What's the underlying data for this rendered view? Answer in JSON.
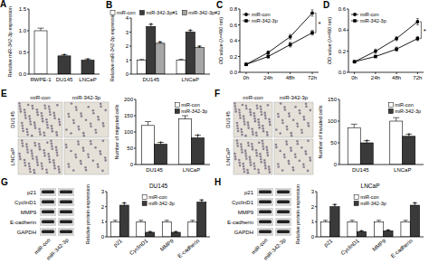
{
  "chart_data": [
    {
      "type": "bar",
      "panel": "A",
      "ylabel": "Relative miR-342-3p expression",
      "categories": [
        "RWPE-1",
        "DU145",
        "LNCaP"
      ],
      "values": [
        1.0,
        0.42,
        0.32
      ],
      "errors": [
        0.06,
        0.03,
        0.03
      ],
      "significance": [
        null,
        "*",
        "*"
      ],
      "colors": [
        "#ffffff",
        "#3a3a3a",
        "#3a3a3a"
      ],
      "ylim": [
        0,
        1.5
      ],
      "yticks": [
        {
          "value": 0,
          "label": "0.0"
        },
        0.5,
        {
          "value": 1,
          "label": "1.0"
        },
        1.5
      ]
    },
    {
      "type": "bar",
      "panel": "B",
      "ylabel": "Relative miR-342-3p expression",
      "categories": [
        "DU145",
        "LNCaP"
      ],
      "series": [
        {
          "name": "miR-con",
          "color": "#ffffff",
          "values": [
            1.0,
            1.0
          ],
          "errors": [
            0.05,
            0.06
          ]
        },
        {
          "name": "miR-342-3p#1",
          "color": "#3a3a3a",
          "values": [
            3.4,
            3.0
          ],
          "errors": [
            0.15,
            0.12
          ],
          "significance": [
            "*",
            "*"
          ]
        },
        {
          "name": "miR-342-3p#2",
          "color": "#a6a6a6",
          "values": [
            2.2,
            1.9
          ],
          "errors": [
            0.1,
            0.1
          ],
          "significance": [
            "*",
            "*"
          ]
        }
      ],
      "ylim": [
        0,
        4
      ],
      "yticks": [
        0,
        1,
        2,
        3,
        4
      ],
      "legend": "top"
    },
    {
      "type": "line",
      "panel": "C",
      "ylabel": "OD value (λ=490 nm)",
      "categories": [
        "0h",
        "24h",
        "48h",
        "72h"
      ],
      "series": [
        {
          "name": "miR-con",
          "color": "#000000",
          "marker": "circle",
          "values": [
            0.1,
            0.25,
            0.45,
            0.75
          ],
          "errors": [
            0.01,
            0.02,
            0.03,
            0.04
          ]
        },
        {
          "name": "miR-342-3p",
          "color": "#000000",
          "marker": "square",
          "values": [
            0.1,
            0.2,
            0.35,
            0.5
          ],
          "errors": [
            0.01,
            0.02,
            0.03,
            0.03
          ]
        }
      ],
      "ylim": [
        0,
        0.8
      ],
      "yticks": [
        {
          "value": 0,
          "label": "0.0"
        },
        0.2,
        0.4,
        0.6,
        0.8
      ],
      "legend": "upper left",
      "annotations": [
        "*"
      ]
    },
    {
      "type": "line",
      "panel": "D",
      "ylabel": "OD value (λ=490 nm)",
      "categories": [
        "0h",
        "24h",
        "48h",
        "72h"
      ],
      "series": [
        {
          "name": "miR-con",
          "color": "#000000",
          "marker": "circle",
          "values": [
            0.1,
            0.2,
            0.32,
            0.48
          ],
          "errors": [
            0.01,
            0.02,
            0.02,
            0.03
          ]
        },
        {
          "name": "miR-342-3p",
          "color": "#000000",
          "marker": "square",
          "values": [
            0.1,
            0.15,
            0.22,
            0.32
          ],
          "errors": [
            0.01,
            0.01,
            0.02,
            0.02
          ]
        }
      ],
      "ylim": [
        0,
        0.6
      ],
      "yticks": [
        {
          "value": 0,
          "label": "0.0"
        },
        0.2,
        0.4,
        0.6
      ],
      "legend": "upper left",
      "annotations": [
        "*"
      ]
    },
    {
      "type": "bar",
      "ylabel": "Number of migrated cells",
      "categories": [
        "DU145",
        "LNCaP"
      ],
      "series": [
        {
          "name": "miR-con",
          "color": "#ffffff",
          "values": [
            120,
            140
          ],
          "errors": [
            12,
            10
          ]
        },
        {
          "name": "miR-342-3p",
          "color": "#3a3a3a",
          "values": [
            62,
            82
          ],
          "errors": [
            6,
            8
          ],
          "significance": [
            "*",
            "*"
          ]
        }
      ],
      "ylim": [
        0,
        200
      ],
      "yticks": [
        0,
        50,
        100,
        150,
        200
      ],
      "legend": "upper right"
    },
    {
      "type": "bar",
      "ylabel": "Number of invaded cells",
      "categories": [
        "DU145",
        "LNCaP"
      ],
      "series": [
        {
          "name": "miR-con",
          "color": "#ffffff",
          "values": [
            85,
            100
          ],
          "errors": [
            8,
            8
          ]
        },
        {
          "name": "miR-342-3p",
          "color": "#3a3a3a",
          "values": [
            50,
            65
          ],
          "errors": [
            5,
            5
          ],
          "significance": [
            "*",
            "*"
          ]
        }
      ],
      "ylim": [
        0,
        150
      ],
      "yticks": [
        0,
        50,
        100,
        150
      ],
      "legend": "upper right"
    },
    {
      "type": "bar",
      "title": "DU145",
      "ylabel": "Relative protein expression",
      "categories": [
        "p21",
        "CyclinD1",
        "MMP9",
        "E-cadherin"
      ],
      "series": [
        {
          "name": "miR-con",
          "color": "#ffffff",
          "values": [
            1,
            1,
            1,
            1
          ],
          "errors": [
            0.1,
            0.1,
            0.1,
            0.1
          ]
        },
        {
          "name": "miR-342-3p",
          "color": "#3a3a3a",
          "values": [
            2.1,
            0.3,
            0.3,
            2.3
          ],
          "errors": [
            0.15,
            0.05,
            0.05,
            0.15
          ],
          "significance": [
            "*",
            "*",
            "*",
            "*"
          ]
        }
      ],
      "ylim": [
        0,
        3
      ],
      "yticks": [
        0,
        1,
        2,
        3
      ],
      "legend": "upper center"
    },
    {
      "type": "bar",
      "title": "LNCaP",
      "ylabel": "Relative protein expression",
      "categories": [
        "p21",
        "CyclinD1",
        "MMP9",
        "E-cadherin"
      ],
      "series": [
        {
          "name": "miR-con",
          "color": "#ffffff",
          "values": [
            1,
            1,
            1,
            1
          ],
          "errors": [
            0.1,
            0.1,
            0.1,
            0.1
          ]
        },
        {
          "name": "miR-342-3p",
          "color": "#3a3a3a",
          "values": [
            2.0,
            0.35,
            0.4,
            2.1
          ],
          "errors": [
            0.15,
            0.05,
            0.05,
            0.15
          ],
          "significance": [
            "*",
            "*",
            "*",
            "*"
          ]
        }
      ],
      "ylim": [
        0,
        3
      ],
      "yticks": [
        0,
        1,
        2,
        3
      ],
      "legend": "upper center"
    }
  ],
  "images": [
    {
      "panel": "E",
      "columns": [
        "miR-con",
        "miR-342-3p"
      ],
      "rows": [
        "DU145",
        "LNCaP"
      ]
    },
    {
      "panel": "F",
      "columns": [
        "miR-con",
        "miR-342-3p"
      ],
      "rows": [
        "DU145",
        "LNCaP"
      ]
    },
    {
      "panel": "G",
      "proteins": [
        "p21",
        "CyclinD1",
        "MMP9",
        "E-cadherin",
        "GAPDH"
      ],
      "lanes": [
        "miR-con",
        "miR-342-3p"
      ]
    },
    {
      "panel": "H",
      "proteins": [
        "p21",
        "CyclinD1",
        "MMP9",
        "E-cadherin",
        "GAPDH"
      ],
      "lanes": [
        "miR-con",
        "miR-342-3p"
      ]
    }
  ]
}
